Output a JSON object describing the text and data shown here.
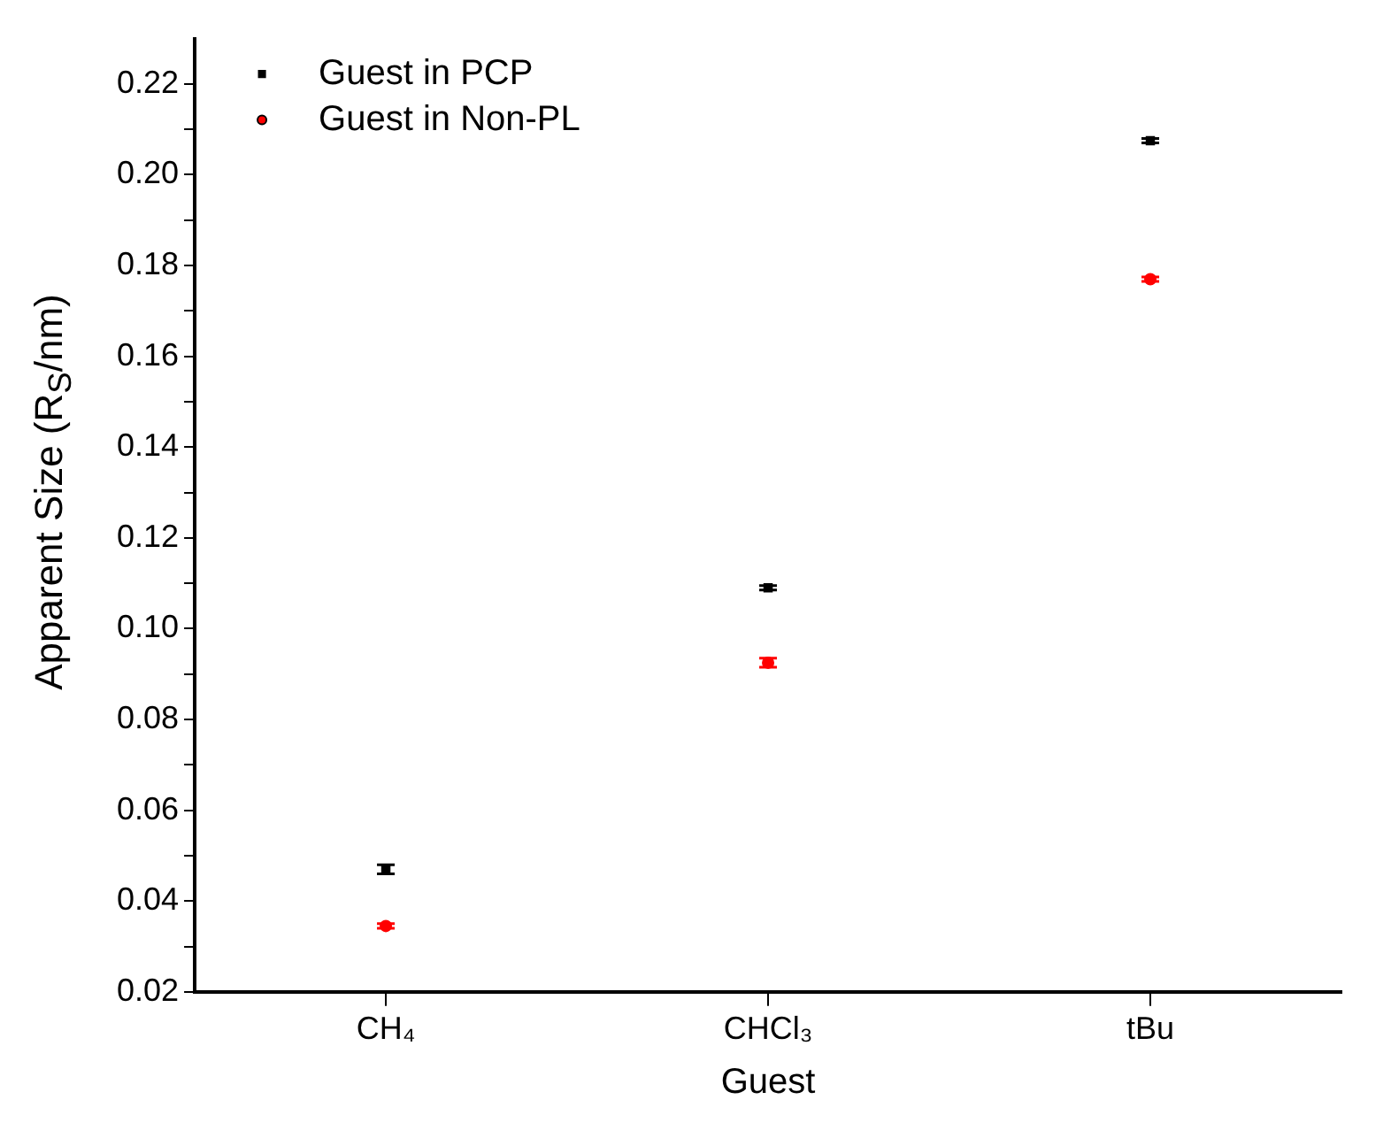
{
  "chart_data": {
    "type": "scatter",
    "xlabel": "Guest",
    "ylabel": "Apparent Size (R$_{S}$/nm)",
    "categories": [
      "CH₄",
      "CHCl₃",
      "tBu"
    ],
    "series": [
      {
        "name": "Guest in PCP",
        "color": "#000000",
        "marker": "square",
        "values": [
          0.047,
          0.109,
          0.2075
        ],
        "errors": [
          0.001,
          0.0005,
          0.0005
        ]
      },
      {
        "name": "Guest in Non-PL",
        "color": "#ff0000",
        "marker": "circle",
        "values": [
          0.0345,
          0.0925,
          0.177
        ],
        "errors": [
          0.0005,
          0.001,
          0.0005
        ]
      }
    ],
    "ylim": [
      0.02,
      0.23
    ],
    "yticks": [
      {
        "value": 0.02,
        "label": "0.02"
      },
      {
        "value": 0.03,
        "label": null
      },
      {
        "value": 0.04,
        "label": "0.04"
      },
      {
        "value": 0.05,
        "label": null
      },
      {
        "value": 0.06,
        "label": "0.06"
      },
      {
        "value": 0.07,
        "label": null
      },
      {
        "value": 0.08,
        "label": "0.08"
      },
      {
        "value": 0.09,
        "label": null
      },
      {
        "value": 0.1,
        "label": "0.10"
      },
      {
        "value": 0.11,
        "label": null
      },
      {
        "value": 0.12,
        "label": "0.12"
      },
      {
        "value": 0.13,
        "label": null
      },
      {
        "value": 0.14,
        "label": "0.14"
      },
      {
        "value": 0.15,
        "label": null
      },
      {
        "value": 0.16,
        "label": "0.16"
      },
      {
        "value": 0.17,
        "label": null
      },
      {
        "value": 0.18,
        "label": "0.18"
      },
      {
        "value": 0.19,
        "label": null
      },
      {
        "value": 0.2,
        "label": "0.20"
      },
      {
        "value": 0.21,
        "label": null
      },
      {
        "value": 0.22,
        "label": "0.22"
      }
    ],
    "legend": "top left",
    "grid": false
  }
}
